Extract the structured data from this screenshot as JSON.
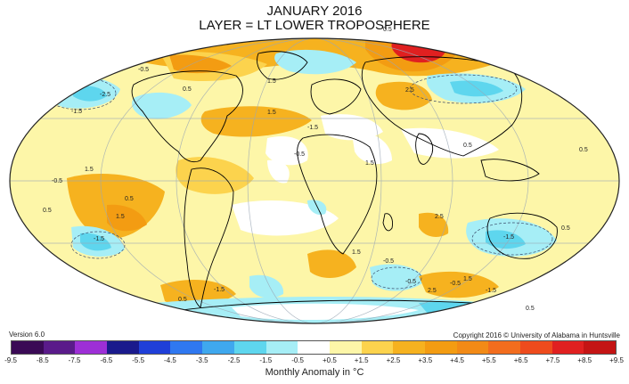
{
  "title_line1": "JANUARY 2016",
  "title_line2": "LAYER = LT LOWER TROPOSPHERE",
  "version": "Version 6.0",
  "copyright": "Copyright 2016 © University of Alabama in Huntsville",
  "legend": {
    "caption": "Monthly Anomaly in °C",
    "ticks": [
      "-9.5",
      "-8.5",
      "-7.5",
      "-6.5",
      "-5.5",
      "-4.5",
      "-3.5",
      "-2.5",
      "-1.5",
      "-0.5",
      "+0.5",
      "+1.5",
      "+2.5",
      "+3.5",
      "+4.5",
      "+5.5",
      "+6.5",
      "+7.5",
      "+8.5",
      "+9.5"
    ],
    "colors": [
      "#3a0a55",
      "#5a1b8a",
      "#9d2fd6",
      "#1a1a8c",
      "#1f3fd8",
      "#2f78f0",
      "#3fa8ee",
      "#5ed6ee",
      "#a6eef6",
      "#ffffff",
      "#fdf6a8",
      "#fcd34d",
      "#f6b21f",
      "#f39c12",
      "#f28a16",
      "#f26d1e",
      "#ee4b1d",
      "#e02020",
      "#c41414"
    ]
  },
  "contour_labels": [
    "-2.5",
    "-1.5",
    "-0.5",
    "0.5",
    "1.5",
    "2.5",
    "-1.5",
    "0.5",
    "1.5",
    "-0.5",
    "0.5",
    "1.5",
    "-1.5",
    "0.5",
    "2.5",
    "-0.5",
    "1.5",
    "2.5",
    "-0.5",
    "1.5",
    "-1.5",
    "0.5",
    "1.5",
    "0.5",
    "0.5",
    "-1.5",
    "-0.5",
    "0.5",
    "1.5",
    "-0.5",
    "-1.5",
    "0.5"
  ]
}
